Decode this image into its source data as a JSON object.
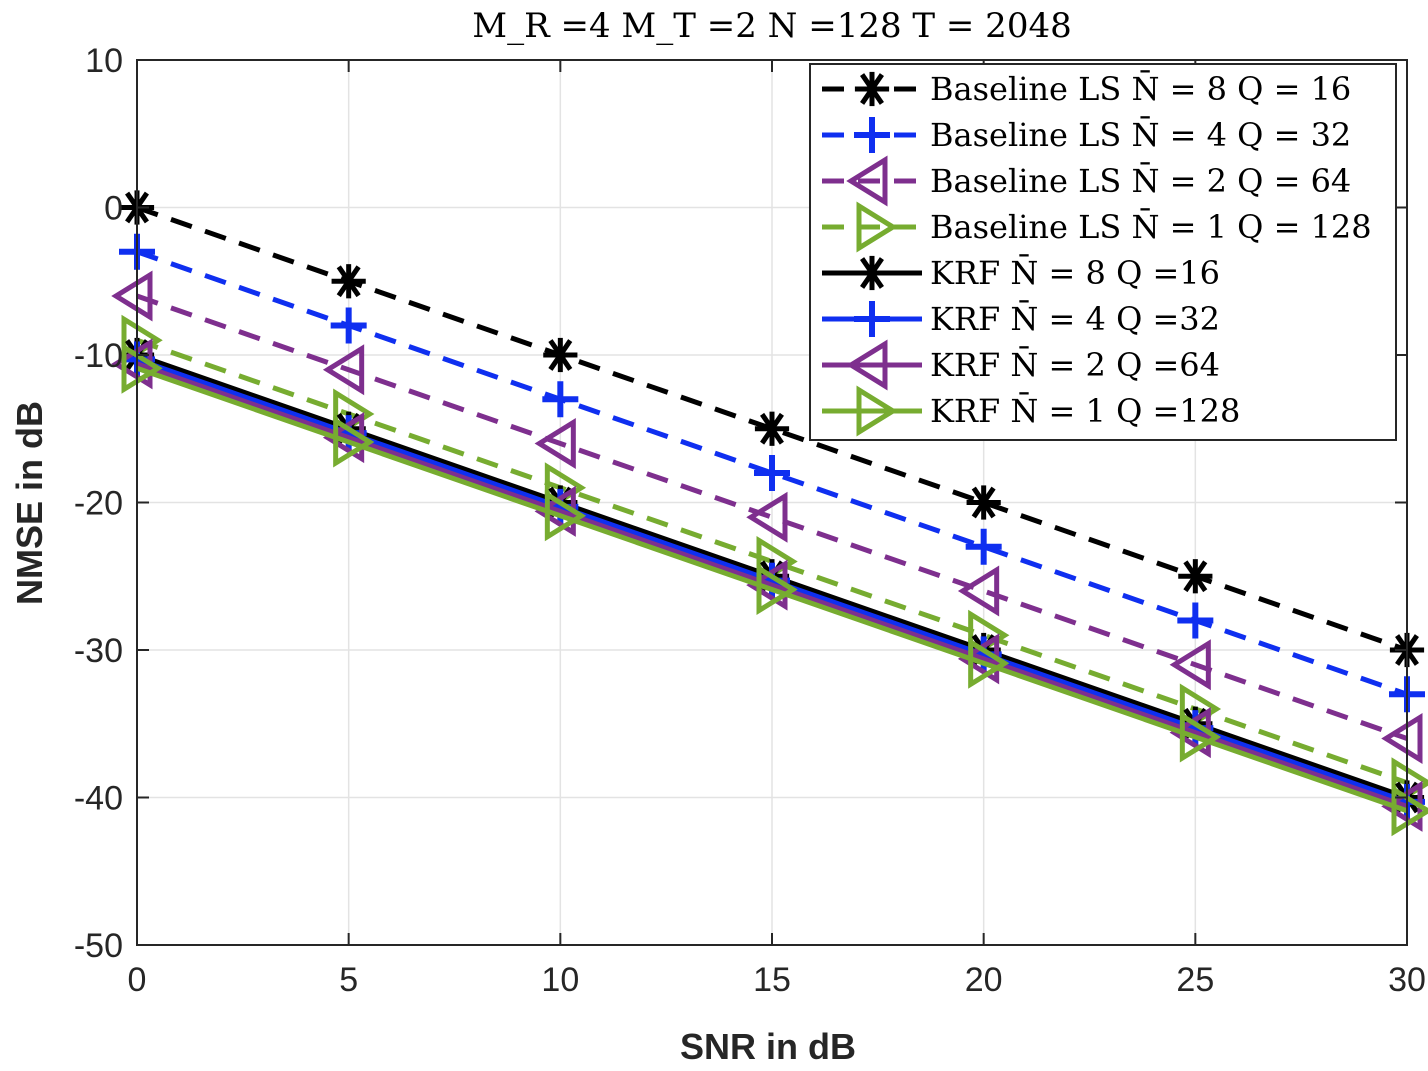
{
  "chart_data": {
    "type": "line",
    "title": "M_R =4 M_T =2 N =128 T = 2048",
    "xlabel": "SNR in dB",
    "ylabel": "NMSE in dB",
    "xlim": [
      0,
      30
    ],
    "ylim": [
      -50,
      10
    ],
    "xticks": [
      "0",
      "5",
      "10",
      "15",
      "20",
      "25",
      "30"
    ],
    "yticks": [
      "10",
      "0",
      "-10",
      "-20",
      "-30",
      "-40",
      "-50"
    ],
    "grid": true,
    "legend_position": "top-right",
    "x": [
      0,
      5,
      10,
      15,
      20,
      25,
      30
    ],
    "series": [
      {
        "name": "Baseline LS N̄ = 8 Q = 16",
        "color": "#000000",
        "linestyle": "dashed",
        "marker": "asterisk",
        "values": [
          0,
          -5,
          -10,
          -15,
          -20,
          -25,
          -30
        ]
      },
      {
        "name": "Baseline LS N̄ = 4 Q = 32",
        "color": "#0f2ff0",
        "linestyle": "dashed",
        "marker": "plus",
        "values": [
          -3,
          -8,
          -13,
          -18,
          -23,
          -28,
          -33
        ]
      },
      {
        "name": "Baseline LS N̄ = 2 Q = 64",
        "color": "#7e2f8e",
        "linestyle": "dashed",
        "marker": "triangle-left",
        "values": [
          -6,
          -11,
          -16,
          -21,
          -26,
          -31,
          -36
        ]
      },
      {
        "name": "Baseline LS N̄ = 1 Q = 128",
        "color": "#77ac30",
        "linestyle": "dashed",
        "marker": "triangle-right",
        "values": [
          -9,
          -14,
          -19,
          -24,
          -29,
          -34,
          -39
        ]
      },
      {
        "name": "KRF N̄ = 8 Q =16",
        "color": "#000000",
        "linestyle": "solid",
        "marker": "asterisk",
        "values": [
          -10,
          -15,
          -20,
          -25,
          -30,
          -35,
          -40
        ]
      },
      {
        "name": "KRF N̄ = 4 Q =32",
        "color": "#0f2ff0",
        "linestyle": "solid",
        "marker": "plus",
        "values": [
          -10.3,
          -15.3,
          -20.3,
          -25.3,
          -30.3,
          -35.3,
          -40.3
        ]
      },
      {
        "name": "KRF N̄ = 2 Q =64",
        "color": "#7e2f8e",
        "linestyle": "solid",
        "marker": "triangle-left",
        "values": [
          -10.6,
          -15.6,
          -20.6,
          -25.6,
          -30.6,
          -35.6,
          -40.6
        ]
      },
      {
        "name": "KRF N̄ = 1 Q =128",
        "color": "#77ac30",
        "linestyle": "solid",
        "marker": "triangle-right",
        "values": [
          -10.9,
          -15.9,
          -20.9,
          -25.9,
          -30.9,
          -35.9,
          -40.9
        ]
      }
    ]
  }
}
